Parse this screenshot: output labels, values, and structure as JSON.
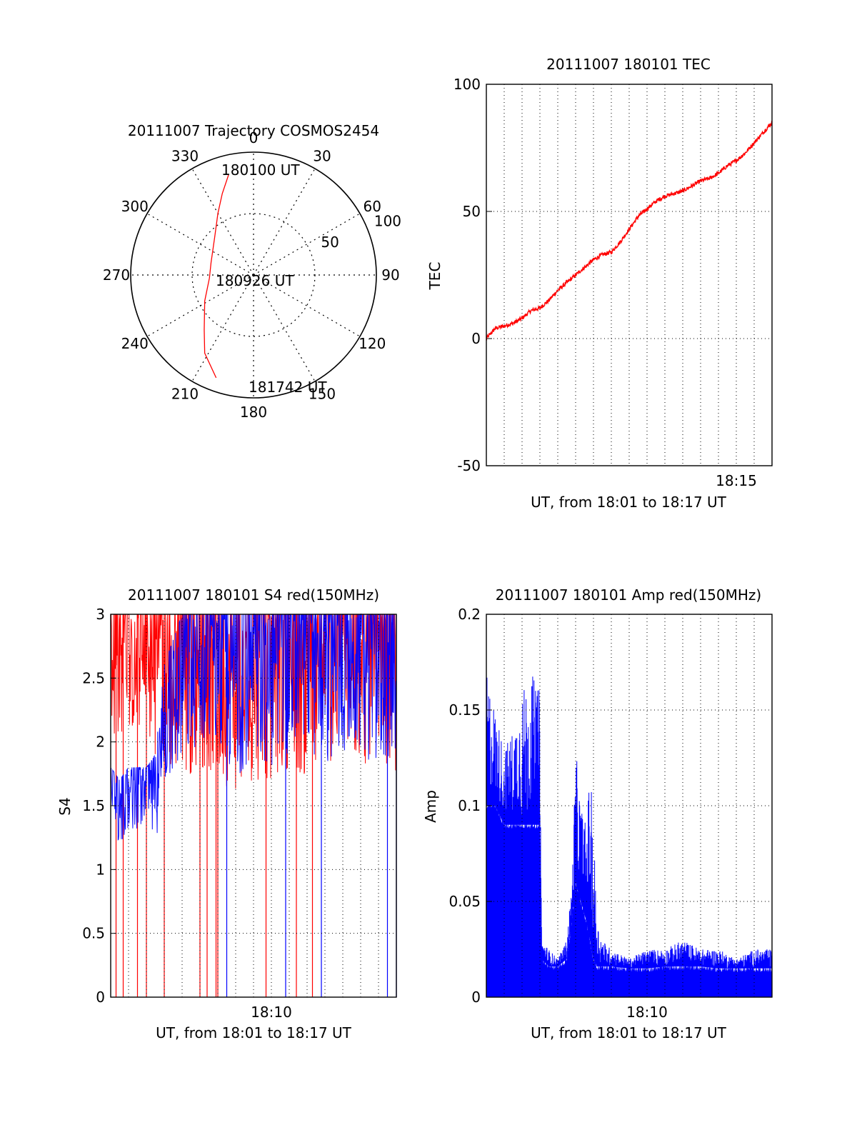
{
  "colors": {
    "red": "#ff0000",
    "blue": "#0000ff",
    "grid": "#000000",
    "bg": "#ffffff"
  },
  "chart_data": [
    {
      "id": "trajectory",
      "type": "polar",
      "title": "20111007 Trajectory COSMOS2454",
      "angle_labels": [
        "0",
        "30",
        "60",
        "90",
        "120",
        "150",
        "180",
        "210",
        "240",
        "270",
        "300",
        "330"
      ],
      "radial_labels": [
        "50",
        "100"
      ],
      "radial_ticks": [
        50,
        100
      ],
      "rmax": 100,
      "annotations": {
        "start": "180100 UT",
        "middle": "180926 UT",
        "end": "181742 UT"
      },
      "series": [
        {
          "color": "#ff0000",
          "points": [
            {
              "az": 346,
              "r": 84
            },
            {
              "az": 339,
              "r": 71
            },
            {
              "az": 330,
              "r": 58
            },
            {
              "az": 314,
              "r": 44
            },
            {
              "az": 286,
              "r": 36
            },
            {
              "az": 266,
              "r": 36
            },
            {
              "az": 242,
              "r": 45
            },
            {
              "az": 222,
              "r": 60
            },
            {
              "az": 212,
              "r": 75
            },
            {
              "az": 200,
              "r": 89
            }
          ]
        }
      ]
    },
    {
      "id": "tec",
      "type": "line",
      "title": "20111007 180101 TEC",
      "ylabel": "TEC",
      "xlabel": "UT, from 18:01 to 18:17 UT",
      "xlim": [
        0,
        16
      ],
      "ylim": [
        -50,
        100
      ],
      "yticks": [
        "100",
        "50",
        "0",
        "-50"
      ],
      "ytick_values": [
        100,
        50,
        0,
        -50
      ],
      "xticks": [
        {
          "label": "18:15",
          "value": 14
        }
      ],
      "grid": true,
      "series": [
        {
          "color": "#ff0000",
          "x": [
            0,
            0.5,
            1,
            1.5,
            2,
            2.5,
            3,
            3.5,
            4,
            4.5,
            5,
            5.5,
            6,
            6.5,
            7,
            7.5,
            8,
            8.5,
            9,
            9.5,
            10,
            10.5,
            11,
            11.5,
            12,
            12.5,
            13,
            13.5,
            14,
            14.5,
            15,
            15.5,
            16
          ],
          "y": [
            0,
            4,
            5,
            6,
            8,
            11,
            12,
            15,
            19,
            22,
            25,
            28,
            31,
            33,
            34,
            38,
            43,
            48,
            51,
            54,
            56,
            57,
            58,
            60,
            62,
            63,
            65,
            68,
            70,
            73,
            77,
            81,
            85
          ]
        }
      ]
    },
    {
      "id": "s4",
      "type": "line",
      "title": "20111007 180101 S4 red(150MHz)",
      "ylabel": "S4",
      "xlabel": "UT, from 18:01 to 18:17 UT",
      "xlim": [
        0,
        16
      ],
      "ylim": [
        0,
        3
      ],
      "yticks": [
        "3",
        "2.5",
        "2",
        "1.5",
        "1",
        "0.5",
        "0"
      ],
      "ytick_values": [
        3,
        2.5,
        2,
        1.5,
        1,
        0.5,
        0
      ],
      "xticks": [
        {
          "label": "18:10",
          "value": 9
        }
      ],
      "grid": true,
      "series": [
        {
          "color": "#ff0000",
          "envelope_x": [
            0,
            1,
            2,
            3,
            4,
            5,
            6,
            7,
            8,
            9,
            10,
            11,
            12,
            13,
            14,
            15,
            16
          ],
          "envelope_low": [
            2.0,
            2.1,
            2.0,
            1.8,
            1.7,
            1.8,
            1.7,
            1.6,
            1.7,
            1.7,
            1.8,
            1.7,
            1.8,
            1.9,
            1.8,
            1.8,
            1.7
          ],
          "envelope_high": [
            3,
            3,
            3,
            3,
            3,
            3,
            3,
            3,
            3,
            3,
            3,
            3,
            3,
            3,
            3,
            3,
            3
          ],
          "dropouts_x": [
            0.3,
            0.7,
            1.5,
            2.0,
            3.0,
            5.0,
            5.4,
            5.9,
            6.0,
            8.7,
            10.4,
            11.3
          ]
        },
        {
          "color": "#0000ff",
          "envelope_x": [
            0,
            0.5,
            1,
            1.5,
            2,
            2.5,
            3,
            4,
            5,
            6,
            7,
            8,
            9,
            10,
            11,
            12,
            13,
            14,
            15,
            16
          ],
          "envelope_low": [
            1.3,
            1.2,
            1.3,
            1.3,
            1.3,
            1.2,
            1.6,
            1.8,
            2.0,
            1.9,
            1.7,
            1.9,
            1.8,
            1.9,
            1.9,
            1.8,
            1.9,
            1.9,
            1.8,
            1.9
          ],
          "envelope_high": [
            1.8,
            1.7,
            1.8,
            1.8,
            1.8,
            1.9,
            2.6,
            3,
            3,
            3,
            3,
            3,
            3,
            3,
            3,
            3,
            3,
            3,
            3,
            3
          ],
          "dropouts_x": [
            6.5,
            9.8,
            11.8,
            15.5,
            16.0
          ]
        }
      ]
    },
    {
      "id": "amp",
      "type": "line",
      "title": "20111007 180101 Amp red(150MHz)",
      "ylabel": "Amp",
      "xlabel": "UT, from 18:01 to 18:17 UT",
      "xlim": [
        0,
        16
      ],
      "ylim": [
        0,
        0.2
      ],
      "yticks": [
        "0.2",
        "0.15",
        "0.1",
        "0.05",
        "0"
      ],
      "ytick_values": [
        0.2,
        0.15,
        0.1,
        0.05,
        0
      ],
      "xticks": [
        {
          "label": "18:10",
          "value": 9
        }
      ],
      "grid": true,
      "series": [
        {
          "color": "#0000ff",
          "x": [
            0,
            0.5,
            1,
            1.5,
            2,
            2.5,
            3,
            3.1,
            3.5,
            4,
            4.5,
            4.8,
            5.0,
            5.3,
            5.6,
            5.8,
            6.0,
            6.2,
            6.5,
            7,
            8,
            9,
            10,
            11,
            12,
            13,
            14,
            15,
            16
          ],
          "y": [
            0.17,
            0.15,
            0.13,
            0.14,
            0.16,
            0.17,
            0.16,
            0.03,
            0.025,
            0.02,
            0.03,
            0.06,
            0.13,
            0.1,
            0.09,
            0.12,
            0.09,
            0.04,
            0.03,
            0.025,
            0.02,
            0.025,
            0.025,
            0.03,
            0.025,
            0.025,
            0.02,
            0.025,
            0.025
          ],
          "floor": [
            0.1,
            0.1,
            0.09,
            0.09,
            0.09,
            0.09,
            0.09,
            0.02,
            0.016,
            0.016,
            0.02,
            0.04,
            0.06,
            0.05,
            0.04,
            0.03,
            0.02,
            0.016,
            0.016,
            0.016,
            0.015,
            0.015,
            0.016,
            0.016,
            0.016,
            0.015,
            0.015,
            0.015,
            0.015
          ]
        }
      ]
    }
  ]
}
